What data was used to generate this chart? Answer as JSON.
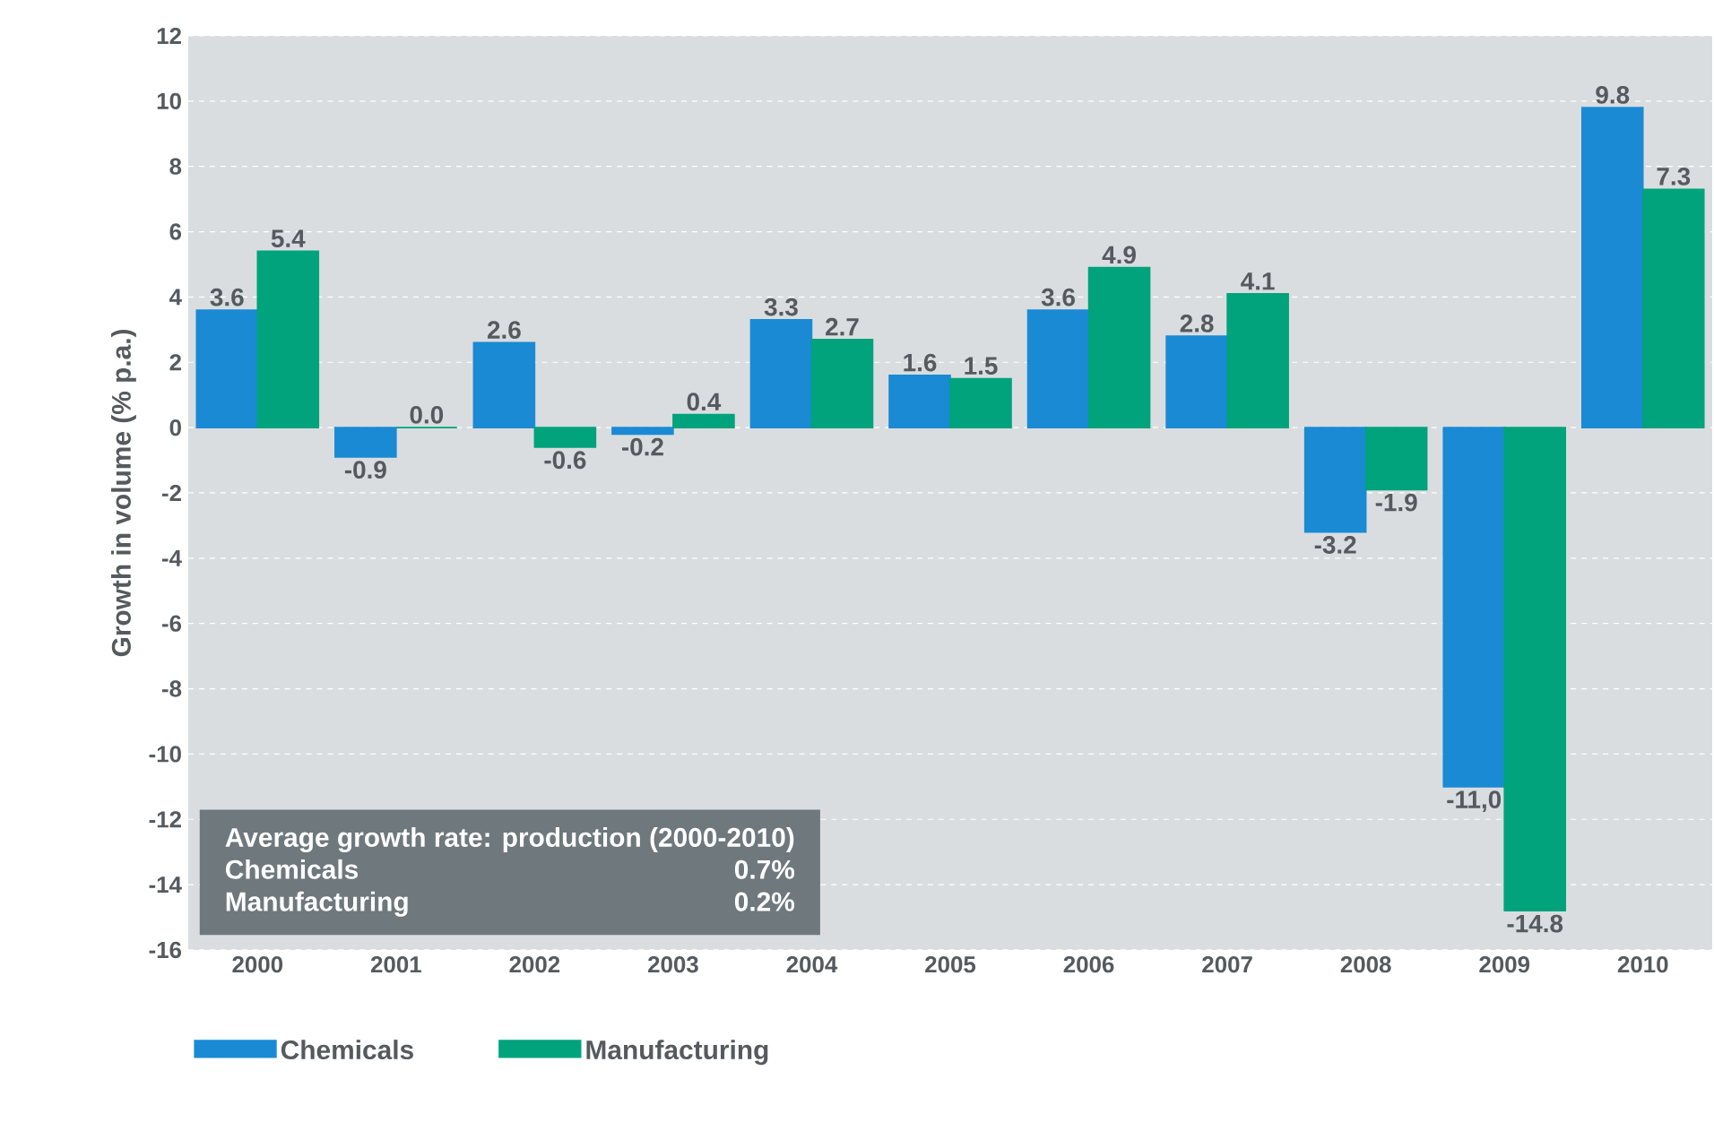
{
  "chart_data": {
    "type": "bar",
    "ylabel": "Growth in volume (% p.a.)",
    "categories": [
      "2000",
      "2001",
      "2002",
      "2003",
      "2004",
      "2005",
      "2006",
      "2007",
      "2008",
      "2009",
      "2010"
    ],
    "series": [
      {
        "name": "Chemicals",
        "color": "#1a8ad4",
        "values": [
          3.6,
          -0.9,
          2.6,
          -0.2,
          3.3,
          1.6,
          3.6,
          2.8,
          -3.2,
          -11.0,
          9.8
        ],
        "value_labels": [
          "3.6",
          "-0.9",
          "2.6",
          "-0.2",
          "3.3",
          "1.6",
          "3.6",
          "2.8",
          "-3.2",
          "-11,0",
          "9.8"
        ]
      },
      {
        "name": "Manufacturing",
        "color": "#00a37c",
        "values": [
          5.4,
          0.0,
          -0.6,
          0.4,
          2.7,
          1.5,
          4.9,
          4.1,
          -1.9,
          -14.8,
          7.3
        ],
        "value_labels": [
          "5.4",
          "0.0",
          "-0.6",
          "0.4",
          "2.7",
          "1.5",
          "4.9",
          "4.1",
          "-1.9",
          "-14.8",
          "7.3"
        ]
      }
    ],
    "ylim": [
      -16,
      12
    ],
    "yticks": [
      -16,
      -14,
      -12,
      -10,
      -8,
      -6,
      -4,
      -2,
      0,
      2,
      4,
      6,
      8,
      10,
      12
    ],
    "grid": "y",
    "legend": "bottom",
    "annotations": [
      "Average growth rate: production (2000-2010)",
      "Chemicals",
      "0.7%",
      "Manufacturing",
      "0.2%"
    ]
  }
}
